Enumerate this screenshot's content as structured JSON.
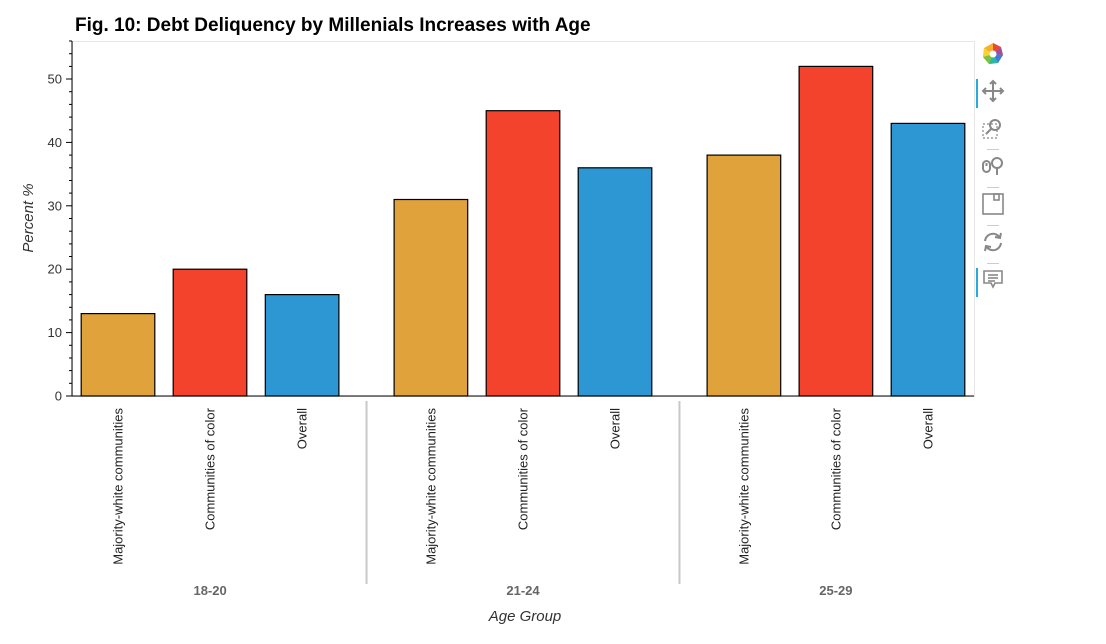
{
  "chart_data": {
    "type": "bar",
    "title": "Fig. 10: Debt Deliquency by Millenials Increases with Age",
    "xlabel": "Age Group",
    "ylabel": "Percent %",
    "ylim": [
      0,
      56
    ],
    "yticks": [
      0,
      10,
      20,
      30,
      40,
      50
    ],
    "groups": [
      "18-20",
      "21-24",
      "25-29"
    ],
    "categories": [
      "Majority-white communities",
      "Communities of color",
      "Overall"
    ],
    "series": [
      {
        "name": "Majority-white communities",
        "color": "#e0a23b",
        "values": [
          13,
          31,
          38
        ]
      },
      {
        "name": "Communities of color",
        "color": "#f4432c",
        "values": [
          20,
          45,
          52
        ]
      },
      {
        "name": "Overall",
        "color": "#2d97d3",
        "values": [
          16,
          36,
          43
        ]
      }
    ],
    "grid": false,
    "legend": "none"
  },
  "toolbar": {
    "tools": [
      {
        "name": "bokeh-logo-icon",
        "active": false
      },
      {
        "name": "pan-icon",
        "active": true
      },
      {
        "name": "box-zoom-icon",
        "active": false
      },
      {
        "name": "wheel-zoom-icon",
        "active": false
      },
      {
        "name": "save-icon",
        "active": false
      },
      {
        "name": "reset-icon",
        "active": false
      },
      {
        "name": "hover-icon",
        "active": true
      }
    ]
  }
}
